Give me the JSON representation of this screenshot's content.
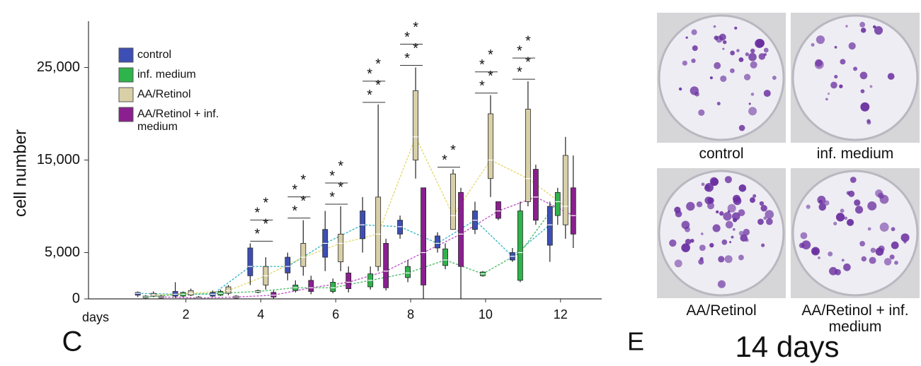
{
  "chart_data": {
    "type": "box",
    "panel_label": "C",
    "y_label": "cell number",
    "x_label": "days",
    "xlim": [
      -0.6,
      13.1
    ],
    "xticks": [
      2,
      4,
      6,
      8,
      10,
      12
    ],
    "ylim": [
      0,
      30000
    ],
    "yticks": [
      0,
      {
        "value": 5000,
        "label": "5,000"
      },
      {
        "value": 15000,
        "label": "15,000"
      },
      {
        "value": 25000,
        "label": "25,000"
      }
    ],
    "x": [
      1,
      2,
      3,
      4,
      5,
      6,
      7,
      8,
      9,
      10,
      11,
      12
    ],
    "series": [
      {
        "name": "control",
        "color": "#3d4fb5",
        "line_color": "#3bb8c8",
        "values": [
          [
            200,
            400,
            600,
            700,
            800
          ],
          [
            100,
            300,
            500,
            800,
            1800
          ],
          [
            200,
            300,
            500,
            700,
            900
          ],
          [
            1500,
            2500,
            3500,
            5500,
            6000
          ],
          [
            2000,
            2800,
            3500,
            4500,
            5000
          ],
          [
            3000,
            4500,
            6000,
            7500,
            9500
          ],
          [
            5000,
            6500,
            8000,
            9500,
            11000
          ],
          [
            6500,
            7000,
            7800,
            8500,
            9000
          ],
          [
            5000,
            5500,
            6000,
            6800,
            7200
          ],
          [
            7000,
            7500,
            8500,
            9500,
            10500
          ],
          [
            4000,
            4200,
            4600,
            5000,
            5500
          ],
          [
            4000,
            5800,
            8000,
            10000,
            10500
          ]
        ]
      },
      {
        "name": "inf. medium",
        "color": "#2fb34b",
        "line_color": "#4cbf6a",
        "values": [
          [
            0,
            100,
            200,
            300,
            400
          ],
          [
            200,
            300,
            500,
            700,
            800
          ],
          [
            300,
            400,
            600,
            800,
            1000
          ],
          [
            600,
            700,
            800,
            900,
            1000
          ],
          [
            700,
            900,
            1200,
            1500,
            2000
          ],
          [
            600,
            800,
            1200,
            1800,
            2200
          ],
          [
            1000,
            1300,
            2000,
            2700,
            3500
          ],
          [
            1800,
            2300,
            2800,
            3500,
            4200
          ],
          [
            3200,
            3600,
            4200,
            5400,
            6000
          ],
          [
            2400,
            2500,
            2700,
            2900,
            3000
          ],
          [
            1800,
            2000,
            5000,
            9500,
            10500
          ],
          [
            8000,
            9000,
            10500,
            11500,
            12000
          ]
        ]
      },
      {
        "name": "AA/Retinol",
        "color": "#d9d0a8",
        "line_color": "#e3d96a",
        "values": [
          [
            200,
            300,
            400,
            600,
            800
          ],
          [
            300,
            400,
            600,
            900,
            1100
          ],
          [
            400,
            600,
            900,
            1300,
            1500
          ],
          [
            1000,
            1500,
            2500,
            3500,
            4500
          ],
          [
            2500,
            3500,
            4500,
            6000,
            8500
          ],
          [
            3000,
            4000,
            6000,
            7000,
            10000
          ],
          [
            3000,
            3500,
            7000,
            11000,
            21000
          ],
          [
            13000,
            15000,
            17500,
            22500,
            25000
          ],
          [
            7500,
            7500,
            9000,
            13500,
            14000
          ],
          [
            11000,
            13000,
            15000,
            20000,
            22000
          ],
          [
            10000,
            10500,
            13000,
            20500,
            23500
          ],
          [
            6500,
            8000,
            10000,
            15500,
            17500
          ]
        ]
      },
      {
        "name": "AA/Retinol + inf. medium",
        "color": "#8b1f90",
        "line_color": "#c055c5",
        "values": [
          [
            0,
            100,
            200,
            300,
            400
          ],
          [
            0,
            50,
            100,
            200,
            300
          ],
          [
            0,
            100,
            200,
            300,
            400
          ],
          [
            0,
            200,
            400,
            700,
            900
          ],
          [
            500,
            800,
            1200,
            2000,
            2500
          ],
          [
            700,
            1100,
            1800,
            2800,
            3500
          ],
          [
            900,
            1200,
            3000,
            6000,
            6500
          ],
          [
            0,
            1500,
            5000,
            12000,
            12000
          ],
          [
            0,
            3500,
            7000,
            11500,
            12000
          ],
          [
            8500,
            8700,
            9500,
            10500,
            10500
          ],
          [
            8000,
            8500,
            11000,
            14000,
            14500
          ],
          [
            5500,
            7000,
            9000,
            12000,
            15500
          ]
        ]
      }
    ],
    "significance": [
      null,
      null,
      null,
      [
        "*",
        "*",
        "*",
        "*"
      ],
      [
        "*",
        "*",
        "*",
        "*"
      ],
      [
        "*",
        "*",
        "*",
        "*"
      ],
      [
        "*",
        "*",
        "*",
        "*"
      ],
      [
        "*",
        "*",
        "*",
        "*"
      ],
      [
        "*",
        "*"
      ],
      [
        "*",
        "*",
        "*",
        "*"
      ],
      [
        "*",
        "*",
        "*",
        "*"
      ],
      null
    ]
  },
  "photos": {
    "panel_label": "E",
    "caption": "14 days",
    "labels": [
      "control",
      "inf. medium",
      "AA/Retinol",
      "AA/Retinol + inf. medium"
    ]
  }
}
